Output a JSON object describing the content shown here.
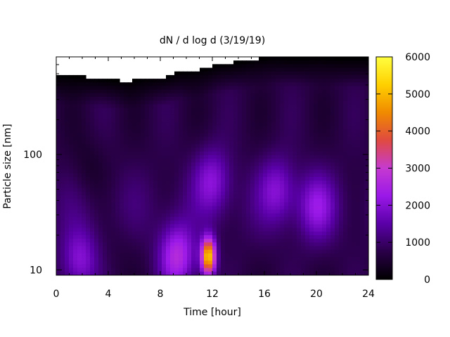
{
  "chart_data": {
    "type": "heatmap",
    "title": "dN / d log d (3/19/19)",
    "xlabel": "Time [hour]",
    "ylabel": "Particle size [nm]",
    "x_range": [
      0,
      24
    ],
    "x_ticks": [
      0,
      4,
      8,
      12,
      16,
      20,
      24
    ],
    "y_scale": "log",
    "y_range": [
      9,
      700
    ],
    "y_ticks": [
      10,
      100
    ],
    "colorbar": {
      "range": [
        0,
        6000
      ],
      "ticks": [
        0,
        1000,
        2000,
        3000,
        4000,
        5000,
        6000
      ],
      "colormap": [
        "#000000",
        "#2a0048",
        "#5a00a8",
        "#9a18e8",
        "#c63ad0",
        "#e04a40",
        "#f08a00",
        "#ffd000",
        "#ffff40"
      ]
    },
    "upper_size_limit_nm": [
      [
        0,
        480
      ],
      [
        2.2,
        470
      ],
      [
        4,
        445
      ],
      [
        5.6,
        430
      ],
      [
        6.8,
        460
      ],
      [
        8.4,
        470
      ],
      [
        9.6,
        520
      ],
      [
        10.6,
        530
      ],
      [
        11.4,
        560
      ],
      [
        12.4,
        600
      ],
      [
        14.2,
        640
      ],
      [
        15.6,
        680
      ],
      [
        17,
        700
      ],
      [
        18.6,
        690
      ],
      [
        20.2,
        690
      ],
      [
        22.2,
        680
      ],
      [
        24,
        680
      ]
    ],
    "features": [
      {
        "time_h": 11.7,
        "size_nm": 13,
        "value": 5200
      },
      {
        "time_h": 9.3,
        "size_nm": 13,
        "value": 2600
      },
      {
        "time_h": 1.8,
        "size_nm": 12,
        "value": 2000
      },
      {
        "time_h": 12.0,
        "size_nm": 60,
        "value": 1900
      },
      {
        "time_h": 17.0,
        "size_nm": 50,
        "value": 1800
      },
      {
        "time_h": 20.0,
        "size_nm": 35,
        "value": 1900
      },
      {
        "time_h": 2.5,
        "size_nm": 75,
        "value": 400
      },
      {
        "time_h": 5.0,
        "size_nm": 15,
        "value": 600
      }
    ]
  }
}
